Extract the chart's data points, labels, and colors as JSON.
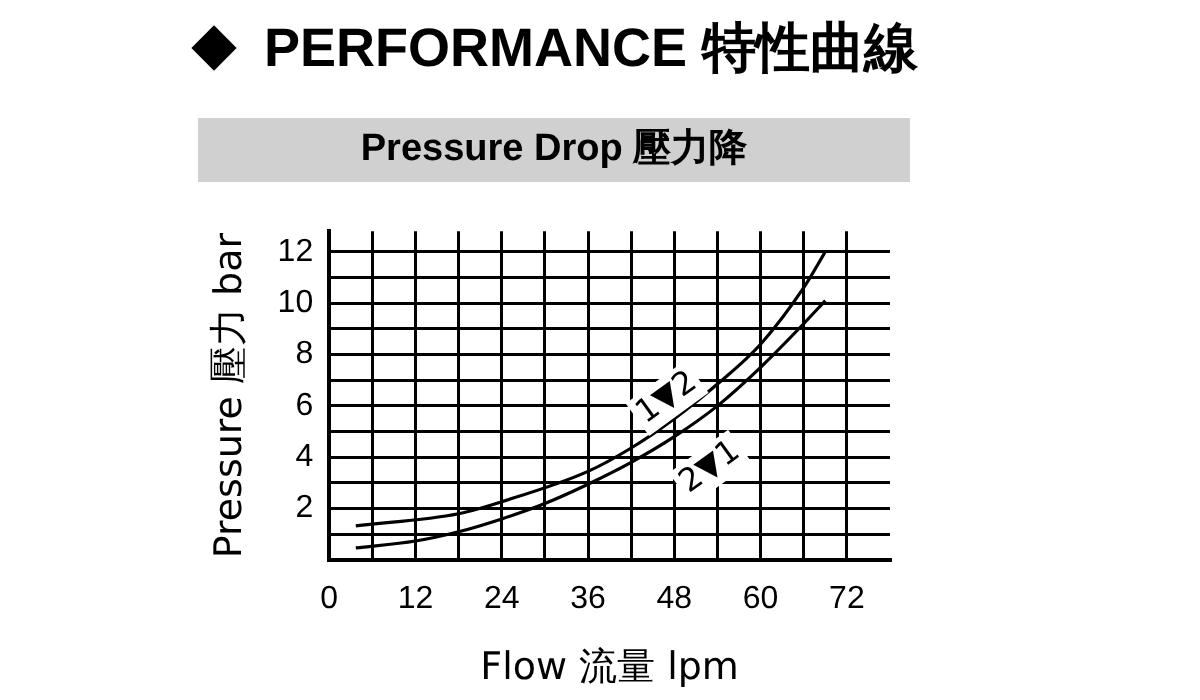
{
  "chart_data": {
    "type": "line",
    "title": "PERFORMANCE 特性曲線",
    "subtitle": "Pressure Drop 壓力降",
    "xlabel": "Flow 流量 lpm",
    "ylabel": "Pressure 壓力 bar",
    "series": [
      {
        "color": "#000000",
        "x": [
          3.7,
          18,
          24,
          36,
          42,
          48,
          54,
          60,
          66,
          69
        ],
        "values": [
          1.33,
          1.8,
          2.27,
          3.45,
          4.36,
          5.5,
          6.85,
          8.4,
          10.6,
          12
        ]
      },
      {
        "color": "#000000",
        "x": [
          3.7,
          12,
          18,
          24,
          30,
          36,
          42,
          48,
          54,
          60,
          66,
          69
        ],
        "values": [
          0.47,
          0.74,
          1.1,
          1.6,
          2.2,
          2.95,
          3.8,
          4.8,
          6.0,
          7.5,
          9.2,
          10.1
        ]
      }
    ],
    "xlim": [
      0,
      78
    ],
    "xticks": [
      0,
      {
        "value": 6,
        "label": null
      },
      12,
      {
        "value": 18,
        "label": null
      },
      24,
      {
        "value": 30,
        "label": null
      },
      36,
      {
        "value": 42,
        "label": null
      },
      48,
      {
        "value": 54,
        "label": null
      },
      60,
      {
        "value": 66,
        "label": null
      },
      72
    ],
    "ylim": [
      0,
      12.8
    ],
    "yticks": [
      {
        "value": 1,
        "label": null
      },
      2,
      {
        "value": 3,
        "label": null
      },
      4,
      {
        "value": 5,
        "label": null
      },
      6,
      {
        "value": 7,
        "label": null
      },
      8,
      {
        "value": 9,
        "label": null
      },
      10,
      {
        "value": 11,
        "label": null
      },
      12
    ],
    "annotations": [
      {
        "text": "1▼2",
        "x": 47,
        "y": 6.3
      },
      {
        "text": "2▼1",
        "x": 53,
        "y": 3.6
      }
    ],
    "grid": true,
    "legend": false,
    "marker": "none",
    "line_style": "solid"
  }
}
